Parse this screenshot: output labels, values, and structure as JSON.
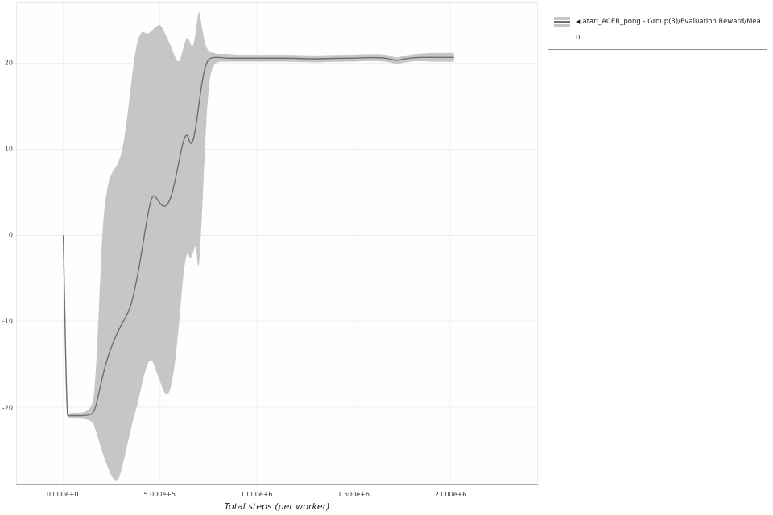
{
  "chart_data": {
    "type": "line",
    "title": "",
    "xlabel": "Total steps (per worker)",
    "ylabel": "",
    "xlim": [
      -240000,
      2450000
    ],
    "ylim": [
      -29,
      27
    ],
    "grid": true,
    "x_ticks": [
      {
        "value": 0,
        "label": "0.000e+0"
      },
      {
        "value": 500000,
        "label": "5.000e+5"
      },
      {
        "value": 1000000,
        "label": "1.000e+6"
      },
      {
        "value": 1500000,
        "label": "1.500e+6"
      },
      {
        "value": 2000000,
        "label": "2.000e+6"
      }
    ],
    "y_ticks": [
      {
        "value": 20,
        "label": "20"
      },
      {
        "value": 10,
        "label": "10"
      },
      {
        "value": 0,
        "label": "0"
      },
      {
        "value": -10,
        "label": "-10"
      },
      {
        "value": -20,
        "label": "-20"
      }
    ],
    "legend": {
      "position": "top-right",
      "collapse_icon": "◀",
      "entries": [
        {
          "label": "atari_ACER_pong - Group(3)/Evaluation Reward/Mean",
          "line_color": "#6e6e6e",
          "band_color": "#c6c6c6"
        }
      ]
    },
    "colors": {
      "grid_h": "#ececec",
      "grid_v": "#f2f2f2",
      "tick_label": "#3a3a3a"
    },
    "series": [
      {
        "name": "atari_ACER_pong - Group(3)/Evaluation Reward/Mean",
        "x": [
          0,
          18000,
          28000,
          145000,
          165000,
          185000,
          205000,
          230000,
          255000,
          280000,
          305000,
          330000,
          355000,
          380000,
          405000,
          430000,
          450000,
          465000,
          480000,
          500000,
          520000,
          540000,
          560000,
          580000,
          600000,
          620000,
          640000,
          655000,
          670000,
          685000,
          700000,
          715000,
          730000,
          745000,
          760000,
          780000,
          800000,
          850000,
          900000,
          1000000,
          1100000,
          1200000,
          1300000,
          1400000,
          1500000,
          1600000,
          1680000,
          1720000,
          1760000,
          1820000,
          1900000,
          1960000,
          2020000
        ],
        "mean": [
          0,
          -21,
          -21,
          -21,
          -20.2,
          -18.3,
          -16.2,
          -14.2,
          -12.6,
          -11.3,
          -10.2,
          -9.3,
          -7.8,
          -5.2,
          -2.0,
          1.5,
          3.9,
          4.7,
          4.4,
          3.7,
          3.3,
          3.6,
          4.6,
          6.5,
          8.8,
          11.0,
          11.9,
          10.6,
          10.8,
          12.5,
          15.0,
          17.5,
          19.3,
          20.3,
          20.6,
          20.7,
          20.7,
          20.6,
          20.6,
          20.6,
          20.6,
          20.6,
          20.5,
          20.6,
          20.6,
          20.7,
          20.6,
          20.3,
          20.5,
          20.7,
          20.7,
          20.7,
          20.7
        ],
        "band_upper": [
          0,
          -20.7,
          -20.7,
          -20.6,
          -17.5,
          -8.0,
          2.0,
          6.0,
          7.5,
          8.2,
          9.8,
          13.5,
          18.5,
          22.5,
          23.8,
          23.4,
          23.6,
          24.0,
          24.3,
          24.6,
          23.8,
          22.8,
          21.8,
          20.6,
          20.0,
          21.8,
          23.2,
          22.4,
          21.8,
          23.5,
          26.6,
          24.5,
          22.5,
          21.6,
          21.3,
          21.2,
          21.1,
          21.1,
          21.0,
          21.0,
          21.0,
          21.0,
          20.9,
          21.0,
          21.0,
          21.1,
          21.0,
          20.6,
          20.9,
          21.1,
          21.2,
          21.2,
          21.2
        ],
        "band_lower": [
          0,
          -21.3,
          -21.3,
          -21.4,
          -22.5,
          -24.0,
          -25.5,
          -27.0,
          -28.3,
          -28.8,
          -27.0,
          -24.5,
          -22.0,
          -20.0,
          -17.5,
          -15.2,
          -14.4,
          -14.8,
          -15.8,
          -17.0,
          -18.3,
          -18.7,
          -17.5,
          -14.5,
          -10.0,
          -4.5,
          -1.8,
          -2.8,
          -2.2,
          -0.8,
          -4.8,
          1.5,
          9.0,
          15.5,
          18.8,
          19.9,
          20.2,
          20.2,
          20.2,
          20.2,
          20.2,
          20.2,
          20.1,
          20.2,
          20.2,
          20.3,
          20.2,
          19.9,
          20.1,
          20.3,
          20.2,
          20.2,
          20.2
        ]
      }
    ]
  }
}
